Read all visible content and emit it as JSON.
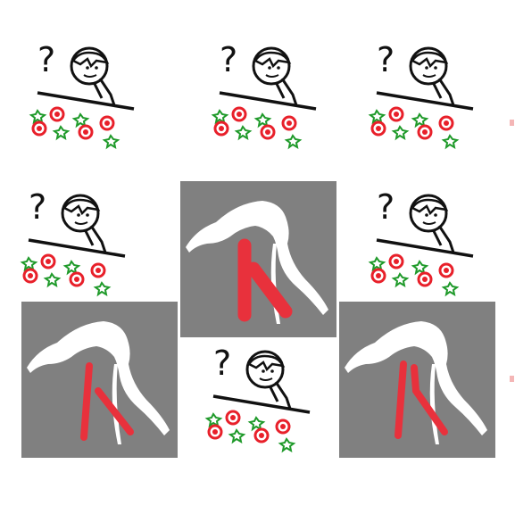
{
  "colors": {
    "background": "#ffffff",
    "panel_grey": "#808080",
    "silhouette": "#ffffff",
    "stroke_red": "#e8313c",
    "marker_red": "#e8202a",
    "marker_green": "#1f9a2a",
    "ink": "#111111"
  },
  "grid": {
    "cells": [
      {
        "kind": "confused-person"
      },
      {
        "kind": "confused-person"
      },
      {
        "kind": "confused-person"
      },
      {
        "kind": "confused-person"
      },
      {
        "kind": "flamingo-mask",
        "variant": "bold-stroke"
      },
      {
        "kind": "confused-person"
      },
      {
        "kind": "flamingo-mask",
        "variant": "thin-stroke"
      },
      {
        "kind": "confused-person"
      },
      {
        "kind": "flamingo-mask",
        "variant": "thin-stroke"
      }
    ]
  },
  "icons": {
    "question_mark": "?",
    "positive_marker": "green-star-icon",
    "negative_marker": "red-circle-icon"
  }
}
